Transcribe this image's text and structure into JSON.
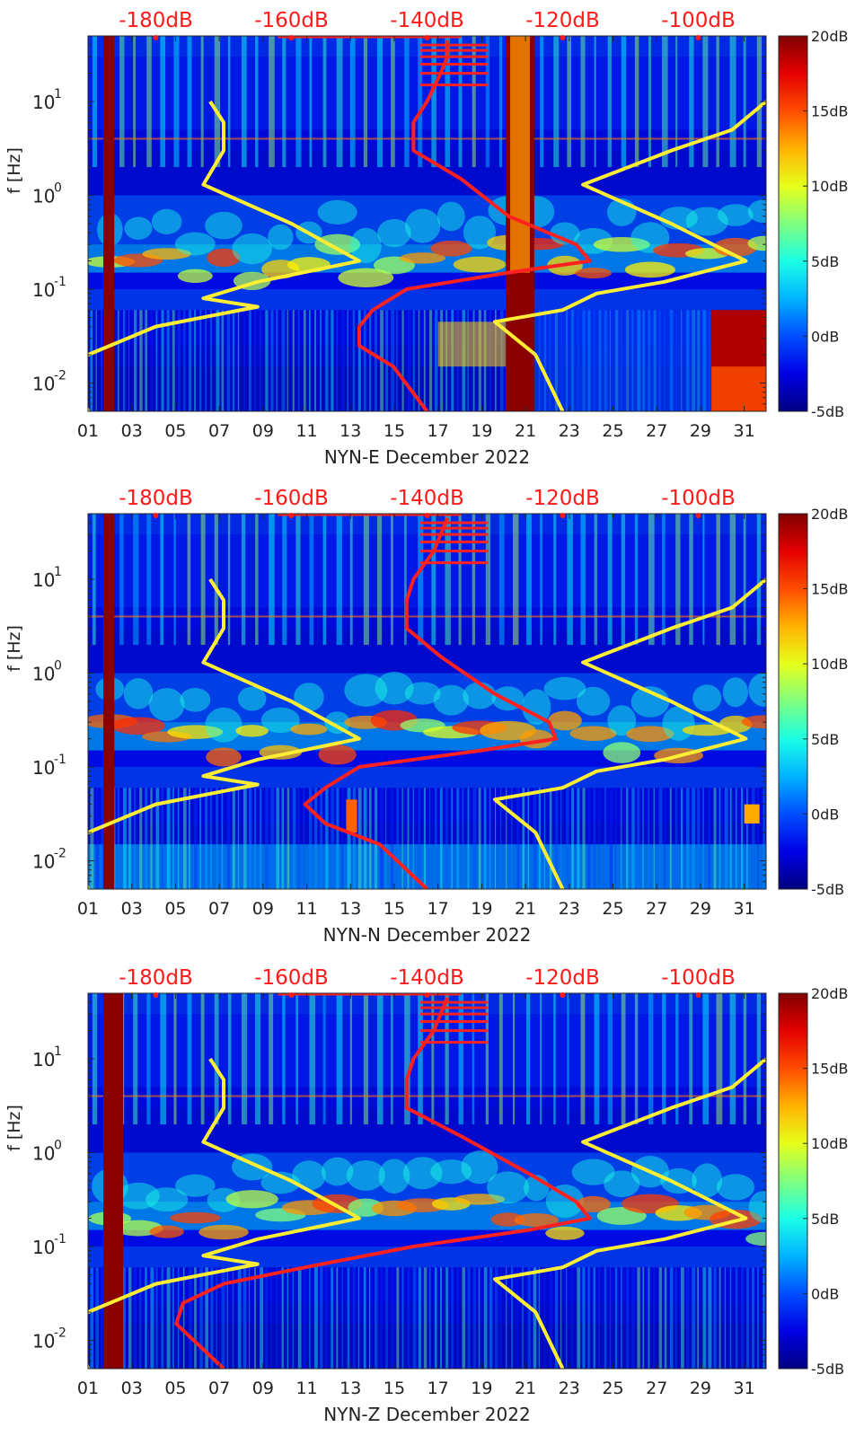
{
  "colors": {
    "noise_model_line": "#ff2020",
    "station_line": "#ffee33",
    "top_label": "#ff1a1a",
    "text": "#222222",
    "colormap": [
      "#00008f",
      "#0040ff",
      "#00c0ff",
      "#40ffbf",
      "#c0ff40",
      "#ffc000",
      "#ff4000",
      "#c00000",
      "#800000"
    ]
  },
  "chart_data": [
    {
      "type": "heatmap",
      "station": "NYN-E",
      "title": "",
      "xlabel": "NYN-E December 2022",
      "ylabel": "f [Hz]",
      "x_ticks": [
        "01",
        "03",
        "05",
        "07",
        "09",
        "11",
        "13",
        "15",
        "17",
        "19",
        "21",
        "23",
        "25",
        "27",
        "29",
        "31"
      ],
      "xlim": [
        1,
        32
      ],
      "y_scale": "log",
      "ylim": [
        0.005,
        50
      ],
      "y_ticks": [
        0.01,
        0.1,
        1,
        10
      ],
      "y_tick_labels": [
        {
          "base": "10",
          "exp": "-2"
        },
        {
          "base": "10",
          "exp": "-1"
        },
        {
          "base": "10",
          "exp": "0"
        },
        {
          "base": "10",
          "exp": "1"
        }
      ],
      "top_axis_labels": [
        "-180dB",
        "-160dB",
        "-140dB",
        "-120dB",
        "-100dB"
      ],
      "top_axis_values": [
        -180,
        -160,
        -140,
        -120,
        -100
      ],
      "colorbar": {
        "range": [
          -5,
          20
        ],
        "tick_values": [
          20,
          15,
          10,
          5,
          0,
          -5
        ],
        "tick_labels": [
          "20dB",
          "15dB",
          "10dB",
          "5dB",
          "0dB",
          "-5dB"
        ]
      },
      "saturated_bands": [
        [
          1.7,
          2.2
        ],
        [
          20.1,
          21.4
        ]
      ],
      "high_low_freq_patch": [
        29.5,
        32
      ],
      "overlay_curves": [
        {
          "name": "",
          "color": "red",
          "points": [
            [
              -137,
              45
            ],
            [
              -137,
              30
            ],
            [
              -138,
              20
            ],
            [
              -140,
              10
            ],
            [
              -142,
              6
            ],
            [
              -142,
              3
            ],
            [
              -135,
              1.5
            ],
            [
              -128,
              0.6
            ],
            [
              -118,
              0.3
            ],
            [
              -116,
              0.2
            ],
            [
              -128,
              0.15
            ],
            [
              -143,
              0.1
            ],
            [
              -148,
              0.06
            ],
            [
              -150,
              0.04
            ],
            [
              -150,
              0.025
            ],
            [
              -145,
              0.015
            ],
            [
              -140,
              0.005
            ]
          ]
        },
        {
          "name": "",
          "color": "yellow",
          "points": [
            [
              -172,
              10
            ],
            [
              -170,
              6
            ],
            [
              -170,
              3
            ],
            [
              -173,
              1.3
            ],
            [
              -160,
              0.5
            ],
            [
              -150,
              0.2
            ],
            [
              -165,
              0.12
            ],
            [
              -173,
              0.08
            ],
            [
              -165,
              0.065
            ],
            [
              -180,
              0.04
            ],
            [
              -190,
              0.02
            ],
            [
              -192,
              0.015
            ],
            [
              -190,
              0.005
            ]
          ]
        },
        {
          "name": "",
          "color": "yellow",
          "points": [
            [
              -90,
              10
            ],
            [
              -95,
              5
            ],
            [
              -104,
              3
            ],
            [
              -117,
              1.3
            ],
            [
              -104,
              0.5
            ],
            [
              -93,
              0.2
            ],
            [
              -105,
              0.12
            ],
            [
              -115,
              0.09
            ],
            [
              -120,
              0.06
            ],
            [
              -130,
              0.045
            ],
            [
              -124,
              0.02
            ],
            [
              -120,
              0.005
            ]
          ]
        }
      ]
    },
    {
      "type": "heatmap",
      "station": "NYN-N",
      "title": "",
      "xlabel": "NYN-N December 2022",
      "ylabel": "f [Hz]",
      "x_ticks": [
        "01",
        "03",
        "05",
        "07",
        "09",
        "11",
        "13",
        "15",
        "17",
        "19",
        "21",
        "23",
        "25",
        "27",
        "29",
        "31"
      ],
      "xlim": [
        1,
        32
      ],
      "y_scale": "log",
      "ylim": [
        0.005,
        50
      ],
      "y_ticks": [
        0.01,
        0.1,
        1,
        10
      ],
      "y_tick_labels": [
        {
          "base": "10",
          "exp": "-2"
        },
        {
          "base": "10",
          "exp": "-1"
        },
        {
          "base": "10",
          "exp": "0"
        },
        {
          "base": "10",
          "exp": "1"
        }
      ],
      "top_axis_labels": [
        "-180dB",
        "-160dB",
        "-140dB",
        "-120dB",
        "-100dB"
      ],
      "top_axis_values": [
        -180,
        -160,
        -140,
        -120,
        -100
      ],
      "colorbar": {
        "range": [
          -5,
          20
        ],
        "tick_values": [
          20,
          15,
          10,
          5,
          0,
          -5
        ],
        "tick_labels": [
          "20dB",
          "15dB",
          "10dB",
          "5dB",
          "0dB",
          "-5dB"
        ]
      },
      "saturated_bands": [
        [
          1.7,
          2.2
        ]
      ],
      "high_low_freq_patch": null,
      "overlay_curves": [
        {
          "name": "",
          "color": "red",
          "points": [
            [
              -137,
              45
            ],
            [
              -138,
              30
            ],
            [
              -139,
              20
            ],
            [
              -142,
              10
            ],
            [
              -143,
              6
            ],
            [
              -143,
              3
            ],
            [
              -138,
              1.5
            ],
            [
              -130,
              0.6
            ],
            [
              -122,
              0.3
            ],
            [
              -121,
              0.2
            ],
            [
              -132,
              0.15
            ],
            [
              -150,
              0.1
            ],
            [
              -155,
              0.06
            ],
            [
              -158,
              0.04
            ],
            [
              -155,
              0.025
            ],
            [
              -147,
              0.015
            ],
            [
              -140,
              0.005
            ]
          ]
        },
        {
          "name": "",
          "color": "yellow",
          "points": [
            [
              -172,
              10
            ],
            [
              -170,
              6
            ],
            [
              -170,
              3
            ],
            [
              -173,
              1.3
            ],
            [
              -160,
              0.5
            ],
            [
              -150,
              0.2
            ],
            [
              -165,
              0.12
            ],
            [
              -173,
              0.08
            ],
            [
              -165,
              0.065
            ],
            [
              -180,
              0.04
            ],
            [
              -190,
              0.02
            ],
            [
              -192,
              0.015
            ],
            [
              -190,
              0.005
            ]
          ]
        },
        {
          "name": "",
          "color": "yellow",
          "points": [
            [
              -90,
              10
            ],
            [
              -95,
              5
            ],
            [
              -104,
              3
            ],
            [
              -117,
              1.3
            ],
            [
              -104,
              0.5
            ],
            [
              -93,
              0.2
            ],
            [
              -105,
              0.12
            ],
            [
              -115,
              0.09
            ],
            [
              -120,
              0.06
            ],
            [
              -130,
              0.045
            ],
            [
              -124,
              0.02
            ],
            [
              -120,
              0.005
            ]
          ]
        }
      ]
    },
    {
      "type": "heatmap",
      "station": "NYN-Z",
      "title": "",
      "xlabel": "NYN-Z December 2022",
      "ylabel": "f [Hz]",
      "x_ticks": [
        "01",
        "03",
        "05",
        "07",
        "09",
        "11",
        "13",
        "15",
        "17",
        "19",
        "21",
        "23",
        "25",
        "27",
        "29",
        "31"
      ],
      "xlim": [
        1,
        32
      ],
      "y_scale": "log",
      "ylim": [
        0.005,
        50
      ],
      "y_ticks": [
        0.01,
        0.1,
        1,
        10
      ],
      "y_tick_labels": [
        {
          "base": "10",
          "exp": "-2"
        },
        {
          "base": "10",
          "exp": "-1"
        },
        {
          "base": "10",
          "exp": "0"
        },
        {
          "base": "10",
          "exp": "1"
        }
      ],
      "top_axis_labels": [
        "-180dB",
        "-160dB",
        "-140dB",
        "-120dB",
        "-100dB"
      ],
      "top_axis_values": [
        -180,
        -160,
        -140,
        -120,
        -100
      ],
      "colorbar": {
        "range": [
          -5,
          20
        ],
        "tick_values": [
          20,
          15,
          10,
          5,
          0,
          -5
        ],
        "tick_labels": [
          "20dB",
          "15dB",
          "10dB",
          "5dB",
          "0dB",
          "-5dB"
        ]
      },
      "saturated_bands": [
        [
          1.7,
          2.6
        ]
      ],
      "high_low_freq_patch": null,
      "overlay_curves": [
        {
          "name": "",
          "color": "red",
          "points": [
            [
              -137,
              45
            ],
            [
              -138,
              30
            ],
            [
              -139,
              20
            ],
            [
              -142,
              10
            ],
            [
              -143,
              6
            ],
            [
              -143,
              3
            ],
            [
              -135,
              1.5
            ],
            [
              -125,
              0.6
            ],
            [
              -118,
              0.3
            ],
            [
              -116,
              0.2
            ],
            [
              -125,
              0.15
            ],
            [
              -142,
              0.1
            ],
            [
              -158,
              0.06
            ],
            [
              -170,
              0.04
            ],
            [
              -176,
              0.025
            ],
            [
              -177,
              0.015
            ],
            [
              -170,
              0.005
            ]
          ]
        },
        {
          "name": "",
          "color": "yellow",
          "points": [
            [
              -172,
              10
            ],
            [
              -170,
              6
            ],
            [
              -170,
              3
            ],
            [
              -173,
              1.3
            ],
            [
              -160,
              0.5
            ],
            [
              -150,
              0.2
            ],
            [
              -165,
              0.12
            ],
            [
              -173,
              0.08
            ],
            [
              -165,
              0.065
            ],
            [
              -180,
              0.04
            ],
            [
              -190,
              0.02
            ],
            [
              -192,
              0.015
            ],
            [
              -190,
              0.005
            ]
          ]
        },
        {
          "name": "",
          "color": "yellow",
          "points": [
            [
              -90,
              10
            ],
            [
              -95,
              5
            ],
            [
              -104,
              3
            ],
            [
              -117,
              1.3
            ],
            [
              -104,
              0.5
            ],
            [
              -93,
              0.2
            ],
            [
              -105,
              0.12
            ],
            [
              -115,
              0.09
            ],
            [
              -120,
              0.06
            ],
            [
              -130,
              0.045
            ],
            [
              -124,
              0.02
            ],
            [
              -120,
              0.005
            ]
          ]
        }
      ]
    }
  ]
}
